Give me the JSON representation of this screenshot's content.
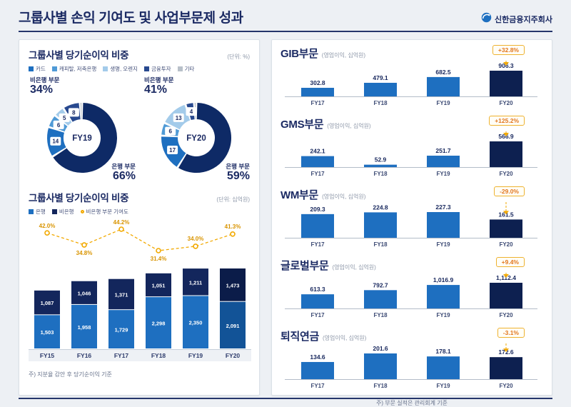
{
  "page": {
    "title": "그룹사별 손익 기여도 및 사업부문제 성과",
    "logo_text": "신한금융지주회사"
  },
  "left_panel": {
    "section1": {
      "title": "그룹사별 당기순이익 비중",
      "unit": "(단위: %)",
      "legend": [
        "카드",
        "캐피탈, 저축은행",
        "생명, 오렌지",
        "금융투자",
        "기타"
      ]
    },
    "section2": {
      "title": "그룹사별 당기순이익 비중",
      "unit": "(단위: 십억원)",
      "legend": [
        {
          "label": "은행",
          "color": "#1e6fc0"
        },
        {
          "label": "비은행",
          "color": "#13265c"
        },
        {
          "label": "비은행 부문 기여도",
          "type": "ring"
        }
      ]
    },
    "footnote": "주) 지분율 감안 후 당기순이익 기준"
  },
  "right_panel": {
    "footnote": "주) 부문 실적은 관리회계 기준"
  },
  "colors": {
    "navy": "#1b2a63",
    "yellow": "#f2a900",
    "badge_border": "#eeb22f",
    "badge_text": "#e2761d",
    "bar_bank": "#1e6fc0",
    "bar_nonbank": "#13265c",
    "bar_bank_current": "#125397",
    "bar_nonbank_current": "#0b1c49",
    "mini_bar": "#1e6fc0",
    "mini_bar_current": "#0d2050",
    "segments": {
      "은행": "#0e2a66",
      "카드": "#1e6fc0",
      "캐피탈, 저축은행": "#4f9ad6",
      "생명, 오렌지": "#a3cbea",
      "금융투자": "#28498f",
      "기타": "#b8c0c9"
    }
  },
  "chart_data": [
    {
      "id": "donut_fy19",
      "type": "pie",
      "center_label": "FY19",
      "annotations": {
        "nonbank_label": "비은행 부문",
        "nonbank_pct": "34%",
        "bank_label": "은행 부문",
        "bank_pct": "66%"
      },
      "segments": [
        {
          "label": "은행",
          "value": 66
        },
        {
          "label": "카드",
          "value": 14
        },
        {
          "label": "캐피탈, 저축은행",
          "value": 6
        },
        {
          "label": "생명, 오렌지",
          "value": 5
        },
        {
          "label": "금융투자",
          "value": 8
        },
        {
          "label": "기타",
          "value": 1
        }
      ]
    },
    {
      "id": "donut_fy20",
      "type": "pie",
      "center_label": "FY20",
      "annotations": {
        "nonbank_label": "비은행 부문",
        "nonbank_pct": "41%",
        "bank_label": "은행 부문",
        "bank_pct": "59%"
      },
      "segments": [
        {
          "label": "은행",
          "value": 59
        },
        {
          "label": "카드",
          "value": 17
        },
        {
          "label": "캐피탈, 저축은행",
          "value": 6
        },
        {
          "label": "생명, 오렌지",
          "value": 13
        },
        {
          "label": "금융투자",
          "value": 4
        },
        {
          "label": "기타",
          "value": 1
        }
      ]
    },
    {
      "id": "stacked_net_income",
      "type": "bar",
      "stacked": true,
      "title": "그룹사별 당기순이익 비중",
      "ylabel": "십억원",
      "categories": [
        "FY15",
        "FY16",
        "FY17",
        "FY18",
        "FY19",
        "FY20"
      ],
      "series": [
        {
          "name": "은행",
          "values": [
            1503,
            1958,
            1729,
            2298,
            2350,
            2091
          ],
          "labels": [
            "1,503",
            "1,958",
            "1,729",
            "2,298",
            "2,350",
            "2,091"
          ]
        },
        {
          "name": "비은행",
          "values": [
            1087,
            1046,
            1371,
            1051,
            1211,
            1473
          ],
          "labels": [
            "1,087",
            "1,046",
            "1,371",
            "1,051",
            "1,211",
            "1,473"
          ]
        }
      ],
      "line": {
        "name": "비은행 부문 기여도",
        "values": [
          42.0,
          34.8,
          44.2,
          31.4,
          34.0,
          41.3
        ],
        "labels": [
          "42.0%",
          "34.8%",
          "44.2%",
          "31.4%",
          "34.0%",
          "41.3%"
        ]
      }
    },
    {
      "id": "gib",
      "type": "bar",
      "group": "division",
      "title": "GIB부문",
      "unit": "(영업이익, 십억원)",
      "badge": "+32.8%",
      "categories": [
        "FY17",
        "FY18",
        "FY19",
        "FY20"
      ],
      "values": [
        302.8,
        479.1,
        682.5,
        906.3
      ],
      "labels": [
        "302.8",
        "479.1",
        "682.5",
        "906.3"
      ]
    },
    {
      "id": "gms",
      "type": "bar",
      "group": "division",
      "title": "GMS부문",
      "unit": "(영업이익, 십억원)",
      "badge": "+125.2%",
      "categories": [
        "FY17",
        "FY18",
        "FY19",
        "FY20"
      ],
      "values": [
        242.1,
        52.9,
        251.7,
        566.9
      ],
      "labels": [
        "242.1",
        "52.9",
        "251.7",
        "566.9"
      ]
    },
    {
      "id": "wm",
      "type": "bar",
      "group": "division",
      "title": "WM부문",
      "unit": "(영업이익, 십억원)",
      "badge": "-29.0%",
      "categories": [
        "FY17",
        "FY18",
        "FY19",
        "FY20"
      ],
      "values": [
        209.3,
        224.8,
        227.3,
        161.5
      ],
      "labels": [
        "209.3",
        "224.8",
        "227.3",
        "161.5"
      ]
    },
    {
      "id": "global",
      "type": "bar",
      "group": "division",
      "title": "글로벌부문",
      "unit": "(영업이익, 십억원)",
      "badge": "+9.4%",
      "categories": [
        "FY17",
        "FY18",
        "FY19",
        "FY20"
      ],
      "values": [
        613.3,
        792.7,
        1016.9,
        1112.4
      ],
      "labels": [
        "613.3",
        "792.7",
        "1,016.9",
        "1,112.4"
      ]
    },
    {
      "id": "pension",
      "type": "bar",
      "group": "division",
      "title": "퇴직연금",
      "unit": "(영업이익, 십억원)",
      "badge": "-3.1%",
      "categories": [
        "FY17",
        "FY18",
        "FY19",
        "FY20"
      ],
      "values": [
        134.6,
        201.6,
        178.1,
        172.6
      ],
      "labels": [
        "134.6",
        "201.6",
        "178.1",
        "172.6"
      ]
    }
  ]
}
